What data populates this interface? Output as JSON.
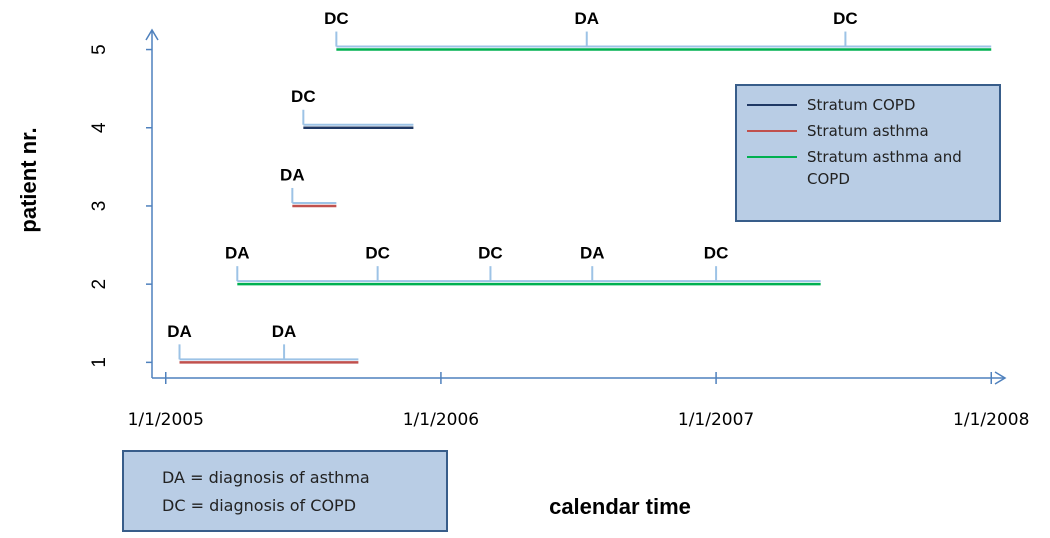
{
  "chart_data": {
    "type": "timeline",
    "xlabel": "calendar time",
    "ylabel": "patient nr.",
    "xlim": [
      2004.95,
      2008.05
    ],
    "ylim": [
      0.8,
      5.25
    ],
    "xticks": [
      {
        "value": 2005,
        "label": "1/1/2005"
      },
      {
        "value": 2006,
        "label": "1/1/2006"
      },
      {
        "value": 2007,
        "label": "1/1/2007"
      },
      {
        "value": 2008,
        "label": "1/1/2008"
      }
    ],
    "yticks": [
      1,
      2,
      3,
      4,
      5
    ],
    "series": [
      {
        "name": "Stratum COPD",
        "color": "#1f3864",
        "bars": [
          {
            "patient": 4,
            "start": 2005.5,
            "end": 2005.9
          }
        ]
      },
      {
        "name": "Stratum asthma",
        "color": "#c0504d",
        "bars": [
          {
            "patient": 1,
            "start": 2005.05,
            "end": 2005.7
          },
          {
            "patient": 3,
            "start": 2005.46,
            "end": 2005.62
          }
        ]
      },
      {
        "name": "Stratum asthma and COPD",
        "color": "#00b050",
        "bars": [
          {
            "patient": 2,
            "start": 2005.26,
            "end": 2007.38
          },
          {
            "patient": 5,
            "start": 2005.62,
            "end": 2008.0
          }
        ]
      }
    ],
    "events": [
      {
        "patient": 1,
        "x": 2005.05,
        "label": "DA"
      },
      {
        "patient": 1,
        "x": 2005.43,
        "label": "DA"
      },
      {
        "patient": 2,
        "x": 2005.26,
        "label": "DA"
      },
      {
        "patient": 2,
        "x": 2005.77,
        "label": "DC"
      },
      {
        "patient": 2,
        "x": 2006.18,
        "label": "DC"
      },
      {
        "patient": 2,
        "x": 2006.55,
        "label": "DA"
      },
      {
        "patient": 2,
        "x": 2007.0,
        "label": "DC"
      },
      {
        "patient": 3,
        "x": 2005.46,
        "label": "DA"
      },
      {
        "patient": 4,
        "x": 2005.5,
        "label": "DC"
      },
      {
        "patient": 5,
        "x": 2005.62,
        "label": "DC"
      },
      {
        "patient": 5,
        "x": 2006.53,
        "label": "DA"
      },
      {
        "patient": 5,
        "x": 2007.47,
        "label": "DC"
      }
    ],
    "notes": [
      "DA = diagnosis of asthma",
      "DC = diagnosis of COPD"
    ]
  }
}
